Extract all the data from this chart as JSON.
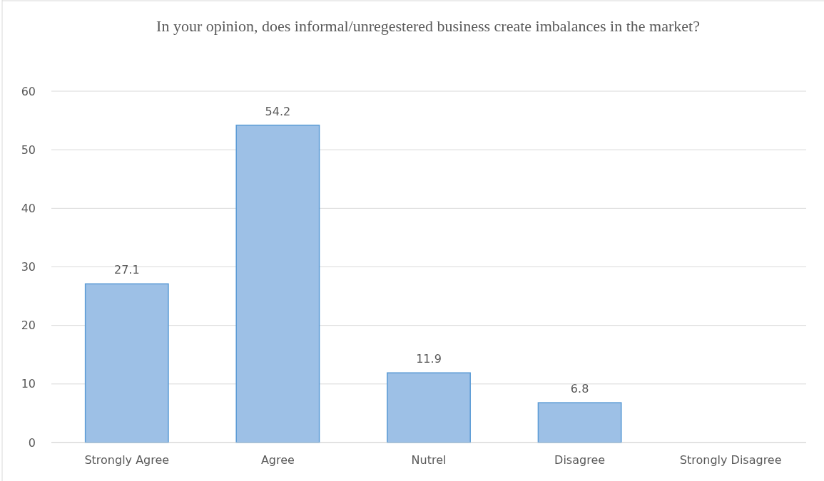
{
  "chart_data": {
    "type": "bar",
    "title": "In your opinion, does informal/unregestered business create imbalances in the market?",
    "categories": [
      "Strongly Agree",
      "Agree",
      "Nutrel",
      "Disagree",
      "Strongly Disagree"
    ],
    "values": [
      27.1,
      54.2,
      11.9,
      6.8,
      null
    ],
    "value_labels": [
      "27.1",
      "54.2",
      "11.9",
      "6.8",
      null
    ],
    "color": "#9dc0e6",
    "ylim": [
      0,
      60
    ],
    "yticks": [
      0,
      10,
      20,
      30,
      40,
      50,
      60
    ],
    "grid": "y"
  }
}
